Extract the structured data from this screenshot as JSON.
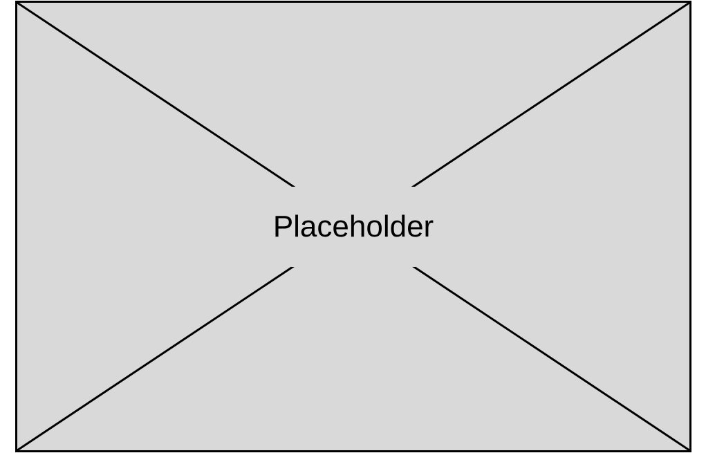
{
  "placeholder": {
    "label": "Placeholder",
    "icon": "image-placeholder-icon",
    "colors": {
      "fill": "#d9d9d9",
      "stroke": "#000000",
      "background": "#ffffff"
    }
  }
}
